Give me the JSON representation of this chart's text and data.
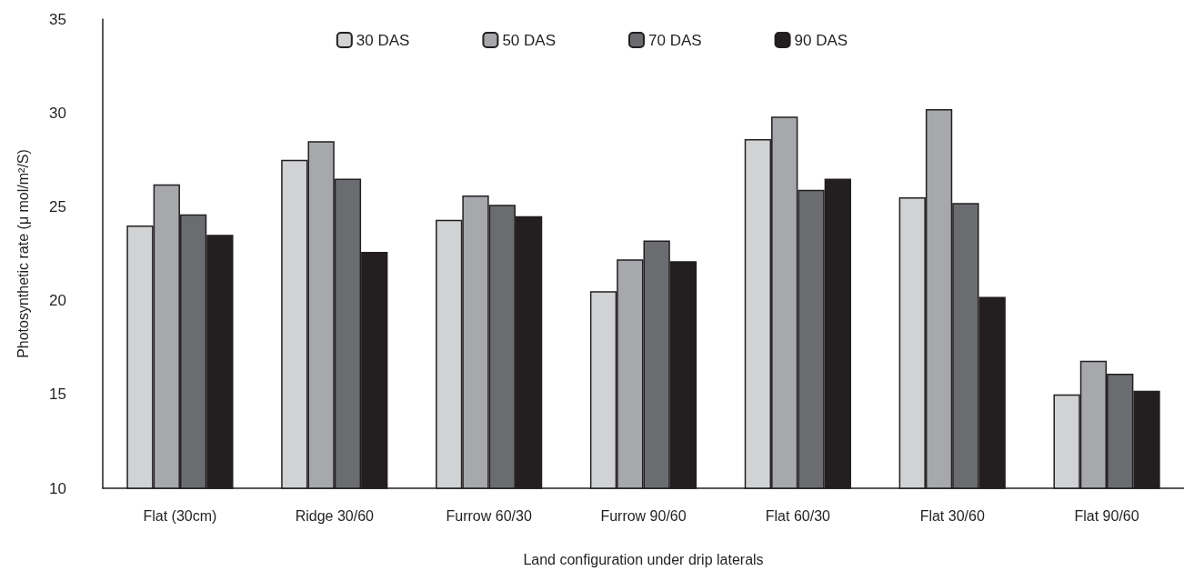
{
  "chart_data": {
    "type": "bar",
    "xlabel": "Land configuration under drip laterals",
    "ylabel": "Photosynthetic rate (μ mol/m²/S)",
    "categories": [
      "Flat (30cm)",
      "Ridge 30/60",
      "Furrow 60/30",
      "Furrow 90/60",
      "Flat 60/30",
      "Flat 30/60",
      "Flat 90/60"
    ],
    "series": [
      {
        "name": "30 DAS",
        "color": "#d1d2d4",
        "values": [
          24.0,
          27.5,
          24.3,
          20.5,
          28.6,
          25.5,
          15.0
        ]
      },
      {
        "name": "50 DAS",
        "color": "#a7a8ac",
        "values": [
          26.2,
          28.5,
          25.6,
          22.2,
          29.8,
          30.2,
          16.8
        ]
      },
      {
        "name": "70 DAS",
        "color": "#6b6c70",
        "values": [
          24.6,
          26.5,
          25.1,
          23.2,
          25.9,
          25.2,
          16.1
        ]
      },
      {
        "name": "90 DAS",
        "color": "#231f20",
        "values": [
          23.5,
          22.6,
          24.5,
          22.1,
          26.5,
          20.2,
          15.2
        ]
      }
    ],
    "ylim": [
      10,
      35
    ],
    "yticks": [
      10,
      15,
      20,
      25,
      30,
      35
    ],
    "grid": false,
    "legend": "top"
  }
}
